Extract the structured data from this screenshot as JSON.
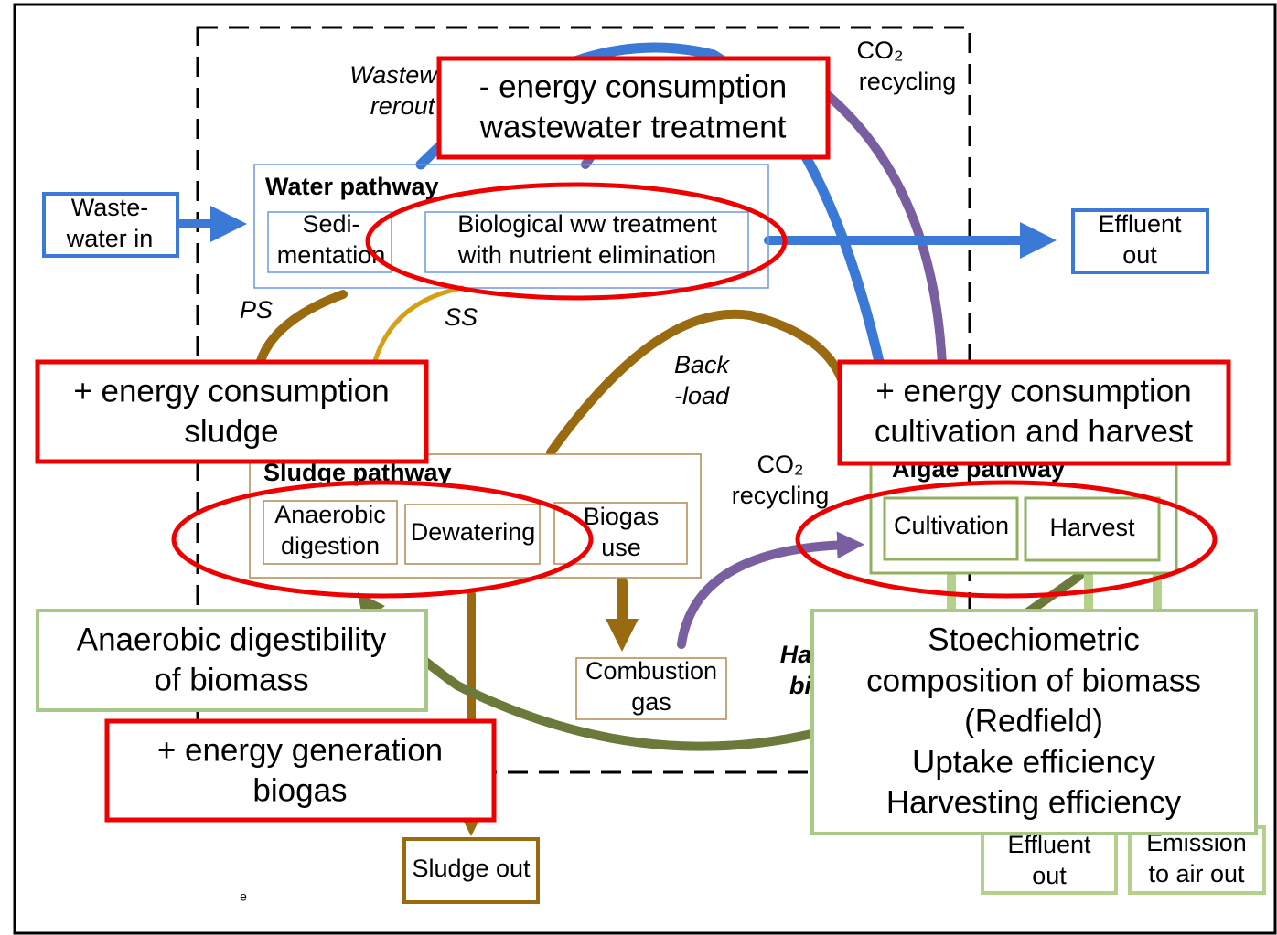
{
  "inputs": {
    "wastewater_in": [
      "Waste-",
      "water in"
    ],
    "effluent_out": [
      "Effluent",
      "out"
    ]
  },
  "water_pathway": {
    "title": "Water pathway",
    "sedimentation": [
      "Sedi-",
      "mentation"
    ],
    "biological": [
      "Biological ww treatment",
      "with nutrient elimination"
    ]
  },
  "flow_labels": {
    "wastewater_rerouted": [
      "Wastew",
      "rerout"
    ],
    "co2_top": "CO₂",
    "recycling_top": "recycling",
    "ps": "PS",
    "ss": "SS",
    "backload": [
      "Back",
      "-load"
    ],
    "co2_mid": "CO₂",
    "recycling_mid": "recycling",
    "harvested": [
      "Ha",
      "bi"
    ],
    "stray": "e"
  },
  "sludge_pathway": {
    "title": "Sludge pathway",
    "anaerobic": [
      "Anaerobic",
      "digestion"
    ],
    "dewatering": "Dewatering",
    "biogas": [
      "Biogas",
      "use"
    ]
  },
  "combustion": [
    "Combustion",
    "gas"
  ],
  "algae_pathway": {
    "title": "Algae pathway",
    "cultivation": "Cultivation",
    "harvest": "Harvest"
  },
  "outputs": {
    "sludge_out": "Sludge out",
    "effluent_out": [
      "Effluent",
      "out"
    ],
    "emission": [
      "Emission",
      "to air out"
    ]
  },
  "energy_notes": {
    "wastewater": [
      "- energy consumption",
      "wastewater treatment"
    ],
    "sludge": [
      "+ energy consumption",
      "sludge"
    ],
    "algae": [
      "+ energy consumption",
      "cultivation and harvest"
    ],
    "biogas": [
      "+ energy generation",
      "biogas"
    ]
  },
  "parameters": {
    "digestibility": [
      "Anaerobic digestibility",
      "of biomass"
    ],
    "stoichiometry": [
      "Stoechiometric",
      "composition of biomass",
      "(Redfield)",
      "Uptake efficiency",
      "Harvesting efficiency"
    ]
  }
}
